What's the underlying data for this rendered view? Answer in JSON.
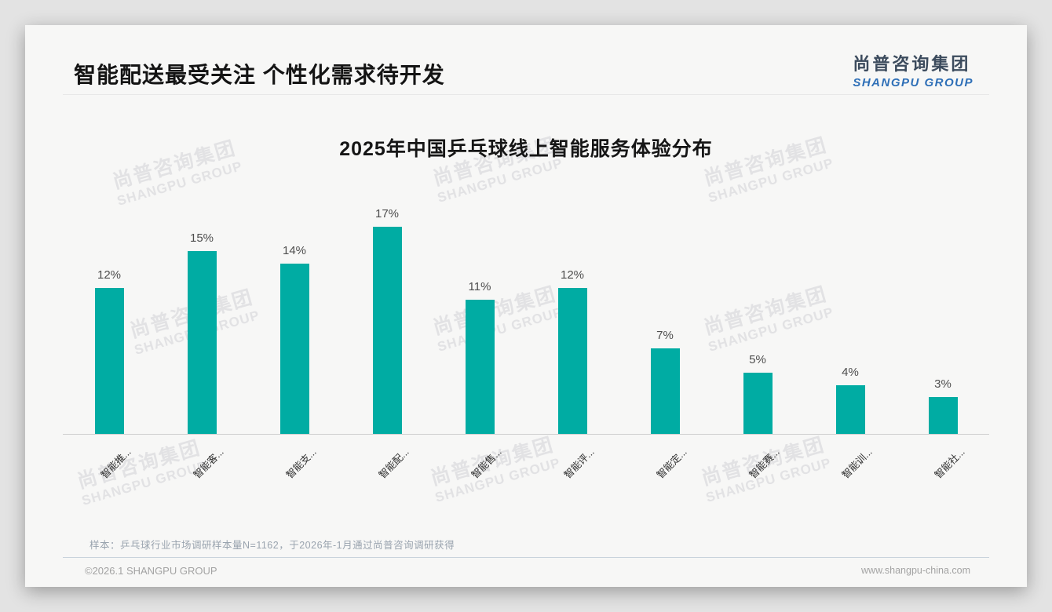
{
  "page": {
    "header_title": "智能配送最受关注 个性化需求待开发",
    "logo": {
      "cn": "尚普咨询集团",
      "en": "SHANGPU GROUP"
    },
    "watermark": {
      "cn": "尚普咨询集团",
      "en": "SHANGPU GROUP"
    },
    "footnote": "样本：乒乓球行业市场调研样本量N=1162，于2026年-1月通过尚普咨询调研获得",
    "footer_left": "©2026.1 SHANGPU GROUP",
    "footer_right": "www.shangpu-china.com"
  },
  "colors": {
    "bar": "#00aca3",
    "logo_en": "#2e6fb7",
    "logo_cn": "#3c4b5d",
    "card_bg": "#f7f7f6",
    "page_bg": "#e3e3e3"
  },
  "chart_data": {
    "type": "bar",
    "title": "2025年中国乒乓球线上智能服务体验分布",
    "categories": [
      "智能推...",
      "智能客...",
      "智能支...",
      "智能配...",
      "智能售...",
      "智能评...",
      "智能定...",
      "智能赛...",
      "智能训...",
      "智能社..."
    ],
    "values": [
      12,
      15,
      14,
      17,
      11,
      12,
      7,
      5,
      4,
      3
    ],
    "value_labels": [
      "12%",
      "15%",
      "14%",
      "17%",
      "11%",
      "12%",
      "7%",
      "5%",
      "4%",
      "3%"
    ],
    "unit": "%",
    "xlabel": "",
    "ylabel": "",
    "ylim": [
      0,
      18
    ],
    "grid": false,
    "legend": null,
    "bar_color": "#00aca3",
    "value_label_position": "above-bar",
    "x_tick_rotation": 45
  }
}
